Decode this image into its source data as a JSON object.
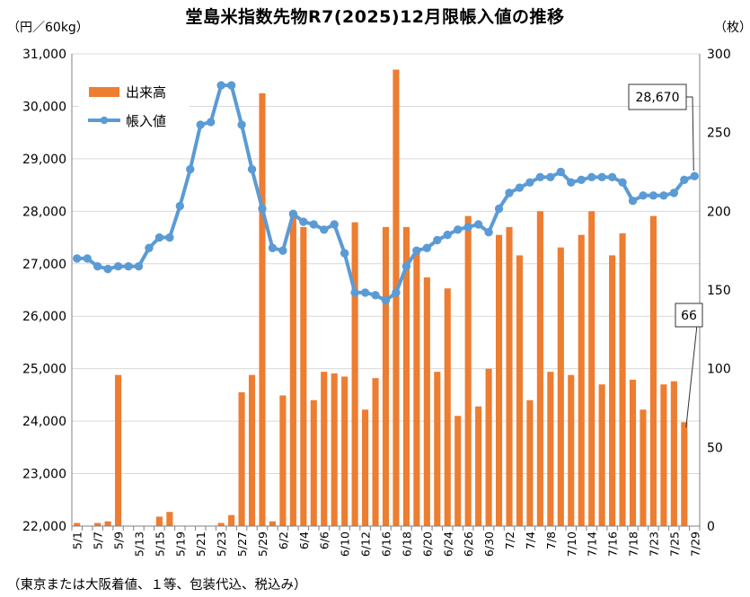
{
  "chart_data": {
    "type": "bar",
    "title": "堂島米指数先物R7(2025)12月限帳入値の推移",
    "left_unit": "（円／60kg）",
    "right_unit": "（枚）",
    "footnote": "（東京または大阪着値、１等、包装代込、税込み）",
    "xlabel": "",
    "ylabel": "",
    "y_left_ticks": [
      "22,000",
      "23,000",
      "24,000",
      "25,000",
      "26,000",
      "27,000",
      "28,000",
      "29,000",
      "30,000",
      "31,000"
    ],
    "y_right_ticks": [
      "0",
      "50",
      "100",
      "150",
      "200",
      "250",
      "300"
    ],
    "ylim_left": [
      22000,
      31000
    ],
    "ylim_right": [
      0,
      300
    ],
    "legend_position": "top-left",
    "x_tick_labels": [
      "5/1",
      "5/7",
      "5/9",
      "5/13",
      "5/15",
      "5/19",
      "5/21",
      "5/23",
      "5/27",
      "5/29",
      "6/2",
      "6/4",
      "6/6",
      "6/10",
      "6/12",
      "6/16",
      "6/18",
      "6/20",
      "6/24",
      "6/26",
      "6/30",
      "7/2",
      "7/4",
      "7/8",
      "7/10",
      "7/14",
      "7/16",
      "7/18",
      "7/23",
      "7/25",
      "7/29"
    ],
    "categories": [
      "5/1",
      "5/2",
      "5/7",
      "5/8",
      "5/9",
      "5/12",
      "5/13",
      "5/14",
      "5/15",
      "5/16",
      "5/19",
      "5/20",
      "5/21",
      "5/22",
      "5/23",
      "5/26",
      "5/27",
      "5/28",
      "5/29",
      "5/30",
      "6/2",
      "6/3",
      "6/4",
      "6/5",
      "6/6",
      "6/9",
      "6/10",
      "6/11",
      "6/12",
      "6/13",
      "6/16",
      "6/17",
      "6/18",
      "6/19",
      "6/20",
      "6/23",
      "6/24",
      "6/25",
      "6/26",
      "6/27",
      "6/30",
      "7/1",
      "7/2",
      "7/3",
      "7/4",
      "7/7",
      "7/8",
      "7/9",
      "7/10",
      "7/11",
      "7/14",
      "7/15",
      "7/16",
      "7/17",
      "7/18",
      "7/22",
      "7/23",
      "7/24",
      "7/25",
      "7/28",
      "7/29"
    ],
    "series": [
      {
        "name": "出来高",
        "type": "bar",
        "axis": "right",
        "color": "#ED7D31",
        "values": [
          2,
          0,
          2,
          3,
          96,
          0,
          0,
          0,
          6,
          9,
          0,
          0,
          0,
          0,
          2,
          7,
          85,
          96,
          275,
          3,
          83,
          200,
          190,
          80,
          98,
          97,
          95,
          193,
          74,
          94,
          190,
          290,
          190,
          176,
          158,
          98,
          151,
          70,
          197,
          76,
          100,
          185,
          190,
          172,
          80,
          200,
          98,
          177,
          96,
          185,
          200,
          90,
          172,
          186,
          93,
          74,
          197,
          90,
          92,
          66,
          0
        ]
      },
      {
        "name": "帳入値",
        "type": "line",
        "axis": "left",
        "color": "#5B9BD5",
        "values": [
          27100,
          27100,
          26950,
          26900,
          26950,
          26950,
          26950,
          27300,
          27500,
          27500,
          28100,
          28800,
          29650,
          29700,
          30400,
          30400,
          29650,
          28800,
          28050,
          27300,
          27250,
          27950,
          27800,
          27750,
          27650,
          27750,
          27200,
          26450,
          26450,
          26400,
          26300,
          26450,
          26950,
          27250,
          27300,
          27450,
          27550,
          27650,
          27700,
          27750,
          27600,
          28050,
          28350,
          28450,
          28550,
          28650,
          28650,
          28750,
          28550,
          28600,
          28650,
          28650,
          28650,
          28550,
          28200,
          28300,
          28300,
          28300,
          28350,
          28600,
          28670
        ]
      }
    ],
    "annotations": [
      {
        "text": "28,670",
        "series": "帳入値",
        "index": 60
      },
      {
        "text": "66",
        "series": "出来高",
        "index": 59
      }
    ]
  }
}
